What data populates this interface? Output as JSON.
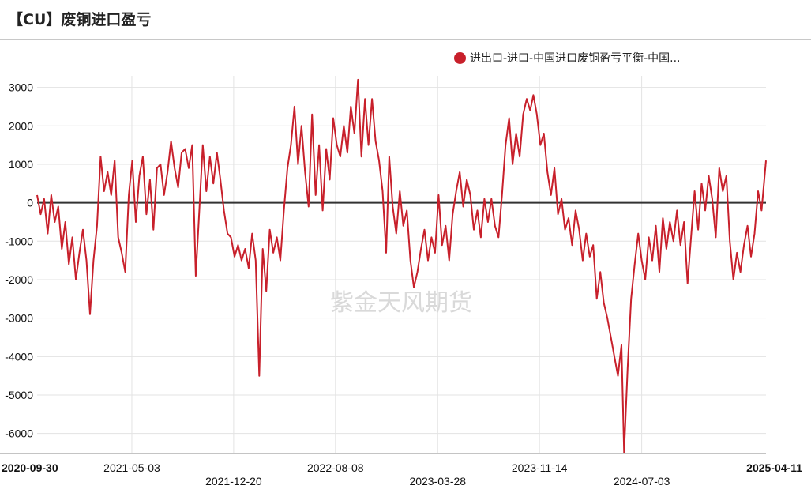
{
  "header": {
    "title": "【CU】废铜进口盈亏"
  },
  "watermark": "紫金天风期货",
  "chart_data": {
    "type": "line",
    "title": "【CU】废铜进口盈亏",
    "xlabel": "",
    "ylabel": "",
    "ylim": [
      -6500,
      3300
    ],
    "yticks": [
      3000,
      2000,
      1000,
      0,
      -1000,
      -2000,
      -3000,
      -4000,
      -5000,
      -6000
    ],
    "xlim": [
      "2020-09-30",
      "2025-04-11"
    ],
    "xticks": [
      {
        "date": "2020-09-30",
        "label": "2020-09-30",
        "row": 0,
        "bold": true
      },
      {
        "date": "2021-05-03",
        "label": "2021-05-03",
        "row": 0,
        "bold": false
      },
      {
        "date": "2021-12-20",
        "label": "2021-12-20",
        "row": 1,
        "bold": false
      },
      {
        "date": "2022-08-08",
        "label": "2022-08-08",
        "row": 0,
        "bold": false
      },
      {
        "date": "2023-03-28",
        "label": "2023-03-28",
        "row": 1,
        "bold": false
      },
      {
        "date": "2023-11-14",
        "label": "2023-11-14",
        "row": 0,
        "bold": false
      },
      {
        "date": "2024-07-03",
        "label": "2024-07-03",
        "row": 1,
        "bold": false
      },
      {
        "date": "2025-04-11",
        "label": "2025-04-11",
        "row": 0,
        "bold": true
      }
    ],
    "grid": true,
    "legend_position": "top-right",
    "series": [
      {
        "name": "进出口-进口-中国进口废铜盈亏平衡-中国...",
        "color": "#c8202b",
        "points": [
          [
            "2020-09-30",
            200
          ],
          [
            "2020-10-08",
            -300
          ],
          [
            "2020-10-16",
            100
          ],
          [
            "2020-10-24",
            -800
          ],
          [
            "2020-11-01",
            200
          ],
          [
            "2020-11-09",
            -500
          ],
          [
            "2020-11-17",
            -100
          ],
          [
            "2020-11-25",
            -1200
          ],
          [
            "2020-12-03",
            -500
          ],
          [
            "2020-12-11",
            -1600
          ],
          [
            "2020-12-19",
            -900
          ],
          [
            "2020-12-27",
            -2000
          ],
          [
            "2021-01-04",
            -1300
          ],
          [
            "2021-01-12",
            -700
          ],
          [
            "2021-01-20",
            -1500
          ],
          [
            "2021-01-28",
            -2900
          ],
          [
            "2021-02-05",
            -1500
          ],
          [
            "2021-02-13",
            -600
          ],
          [
            "2021-02-21",
            1200
          ],
          [
            "2021-03-01",
            300
          ],
          [
            "2021-03-09",
            800
          ],
          [
            "2021-03-17",
            200
          ],
          [
            "2021-03-25",
            1100
          ],
          [
            "2021-04-02",
            -900
          ],
          [
            "2021-04-10",
            -1300
          ],
          [
            "2021-04-18",
            -1800
          ],
          [
            "2021-04-26",
            200
          ],
          [
            "2021-05-04",
            1100
          ],
          [
            "2021-05-12",
            -500
          ],
          [
            "2021-05-20",
            700
          ],
          [
            "2021-05-28",
            1200
          ],
          [
            "2021-06-05",
            -300
          ],
          [
            "2021-06-13",
            600
          ],
          [
            "2021-06-21",
            -700
          ],
          [
            "2021-06-29",
            900
          ],
          [
            "2021-07-07",
            1000
          ],
          [
            "2021-07-15",
            200
          ],
          [
            "2021-07-23",
            800
          ],
          [
            "2021-07-31",
            1600
          ],
          [
            "2021-08-08",
            900
          ],
          [
            "2021-08-16",
            400
          ],
          [
            "2021-08-24",
            1300
          ],
          [
            "2021-09-01",
            1400
          ],
          [
            "2021-09-09",
            900
          ],
          [
            "2021-09-17",
            1500
          ],
          [
            "2021-09-25",
            -1900
          ],
          [
            "2021-10-03",
            -200
          ],
          [
            "2021-10-11",
            1500
          ],
          [
            "2021-10-19",
            300
          ],
          [
            "2021-10-27",
            1200
          ],
          [
            "2021-11-04",
            500
          ],
          [
            "2021-11-12",
            1300
          ],
          [
            "2021-11-20",
            600
          ],
          [
            "2021-11-28",
            -200
          ],
          [
            "2021-12-06",
            -800
          ],
          [
            "2021-12-14",
            -900
          ],
          [
            "2021-12-22",
            -1400
          ],
          [
            "2021-12-30",
            -1100
          ],
          [
            "2022-01-07",
            -1500
          ],
          [
            "2022-01-15",
            -1200
          ],
          [
            "2022-01-23",
            -1700
          ],
          [
            "2022-01-31",
            -800
          ],
          [
            "2022-02-08",
            -1500
          ],
          [
            "2022-02-16",
            -4500
          ],
          [
            "2022-02-24",
            -1200
          ],
          [
            "2022-03-04",
            -2300
          ],
          [
            "2022-03-12",
            -700
          ],
          [
            "2022-03-20",
            -1300
          ],
          [
            "2022-03-28",
            -900
          ],
          [
            "2022-04-05",
            -1500
          ],
          [
            "2022-04-13",
            -200
          ],
          [
            "2022-04-21",
            900
          ],
          [
            "2022-04-29",
            1500
          ],
          [
            "2022-05-07",
            2500
          ],
          [
            "2022-05-15",
            1000
          ],
          [
            "2022-05-23",
            2000
          ],
          [
            "2022-05-31",
            800
          ],
          [
            "2022-06-08",
            -100
          ],
          [
            "2022-06-16",
            2300
          ],
          [
            "2022-06-24",
            200
          ],
          [
            "2022-07-02",
            1500
          ],
          [
            "2022-07-10",
            -200
          ],
          [
            "2022-07-18",
            1400
          ],
          [
            "2022-07-26",
            600
          ],
          [
            "2022-08-03",
            2200
          ],
          [
            "2022-08-11",
            1500
          ],
          [
            "2022-08-19",
            1200
          ],
          [
            "2022-08-27",
            2000
          ],
          [
            "2022-09-04",
            1300
          ],
          [
            "2022-09-12",
            2500
          ],
          [
            "2022-09-20",
            1800
          ],
          [
            "2022-09-28",
            3200
          ],
          [
            "2022-10-06",
            1200
          ],
          [
            "2022-10-14",
            2700
          ],
          [
            "2022-10-22",
            1500
          ],
          [
            "2022-10-30",
            2700
          ],
          [
            "2022-11-07",
            1600
          ],
          [
            "2022-11-15",
            1100
          ],
          [
            "2022-11-23",
            300
          ],
          [
            "2022-11-31",
            -1300
          ],
          [
            "2022-12-08",
            1200
          ],
          [
            "2022-12-16",
            -100
          ],
          [
            "2022-12-24",
            -800
          ],
          [
            "2023-01-01",
            300
          ],
          [
            "2023-01-09",
            -600
          ],
          [
            "2023-01-17",
            -200
          ],
          [
            "2023-01-25",
            -1500
          ],
          [
            "2023-02-02",
            -2200
          ],
          [
            "2023-02-10",
            -1800
          ],
          [
            "2023-02-18",
            -1200
          ],
          [
            "2023-02-26",
            -700
          ],
          [
            "2023-03-06",
            -1500
          ],
          [
            "2023-03-14",
            -900
          ],
          [
            "2023-03-22",
            -1300
          ],
          [
            "2023-03-30",
            200
          ],
          [
            "2023-04-07",
            -1100
          ],
          [
            "2023-04-15",
            -600
          ],
          [
            "2023-04-23",
            -1500
          ],
          [
            "2023-05-01",
            -300
          ],
          [
            "2023-05-09",
            300
          ],
          [
            "2023-05-17",
            800
          ],
          [
            "2023-05-25",
            -100
          ],
          [
            "2023-06-02",
            600
          ],
          [
            "2023-06-10",
            200
          ],
          [
            "2023-06-18",
            -700
          ],
          [
            "2023-06-26",
            -200
          ],
          [
            "2023-07-04",
            -900
          ],
          [
            "2023-07-12",
            100
          ],
          [
            "2023-07-20",
            -500
          ],
          [
            "2023-07-28",
            100
          ],
          [
            "2023-08-05",
            -600
          ],
          [
            "2023-08-13",
            -900
          ],
          [
            "2023-08-21",
            200
          ],
          [
            "2023-08-29",
            1500
          ],
          [
            "2023-09-06",
            2200
          ],
          [
            "2023-09-14",
            1000
          ],
          [
            "2023-09-22",
            1800
          ],
          [
            "2023-09-30",
            1200
          ],
          [
            "2023-10-08",
            2300
          ],
          [
            "2023-10-16",
            2700
          ],
          [
            "2023-10-24",
            2400
          ],
          [
            "2023-10-31",
            2800
          ],
          [
            "2023-11-08",
            2300
          ],
          [
            "2023-11-16",
            1500
          ],
          [
            "2023-11-24",
            1800
          ],
          [
            "2023-12-02",
            800
          ],
          [
            "2023-12-10",
            200
          ],
          [
            "2023-12-18",
            900
          ],
          [
            "2023-12-26",
            -300
          ],
          [
            "2024-01-03",
            100
          ],
          [
            "2024-01-11",
            -700
          ],
          [
            "2024-01-19",
            -400
          ],
          [
            "2024-01-27",
            -1100
          ],
          [
            "2024-02-04",
            -200
          ],
          [
            "2024-02-12",
            -700
          ],
          [
            "2024-02-20",
            -1500
          ],
          [
            "2024-02-28",
            -800
          ],
          [
            "2024-03-07",
            -1400
          ],
          [
            "2024-03-15",
            -1100
          ],
          [
            "2024-03-23",
            -2500
          ],
          [
            "2024-03-31",
            -1800
          ],
          [
            "2024-04-08",
            -2600
          ],
          [
            "2024-04-16",
            -3000
          ],
          [
            "2024-04-24",
            -3500
          ],
          [
            "2024-05-02",
            -4000
          ],
          [
            "2024-05-10",
            -4500
          ],
          [
            "2024-05-18",
            -3700
          ],
          [
            "2024-05-24",
            -6500
          ],
          [
            "2024-06-01",
            -4300
          ],
          [
            "2024-06-09",
            -2500
          ],
          [
            "2024-06-17",
            -1600
          ],
          [
            "2024-06-25",
            -800
          ],
          [
            "2024-07-03",
            -1500
          ],
          [
            "2024-07-11",
            -2000
          ],
          [
            "2024-07-19",
            -900
          ],
          [
            "2024-07-27",
            -1500
          ],
          [
            "2024-08-04",
            -600
          ],
          [
            "2024-08-12",
            -1800
          ],
          [
            "2024-08-20",
            -400
          ],
          [
            "2024-08-28",
            -1200
          ],
          [
            "2024-09-05",
            -500
          ],
          [
            "2024-09-13",
            -1000
          ],
          [
            "2024-09-21",
            -200
          ],
          [
            "2024-09-29",
            -1100
          ],
          [
            "2024-10-07",
            -500
          ],
          [
            "2024-10-15",
            -2100
          ],
          [
            "2024-10-23",
            -900
          ],
          [
            "2024-10-31",
            300
          ],
          [
            "2024-11-08",
            -700
          ],
          [
            "2024-11-16",
            500
          ],
          [
            "2024-11-24",
            -200
          ],
          [
            "2024-12-02",
            700
          ],
          [
            "2024-12-10",
            100
          ],
          [
            "2024-12-18",
            -900
          ],
          [
            "2024-12-26",
            900
          ],
          [
            "2025-01-03",
            300
          ],
          [
            "2025-01-11",
            700
          ],
          [
            "2025-01-19",
            -1000
          ],
          [
            "2025-01-27",
            -2000
          ],
          [
            "2025-02-04",
            -1300
          ],
          [
            "2025-02-12",
            -1800
          ],
          [
            "2025-02-20",
            -1100
          ],
          [
            "2025-02-28",
            -600
          ],
          [
            "2025-03-08",
            -1400
          ],
          [
            "2025-03-16",
            -800
          ],
          [
            "2025-03-24",
            300
          ],
          [
            "2025-04-01",
            -200
          ],
          [
            "2025-04-11",
            1100
          ]
        ]
      }
    ]
  }
}
